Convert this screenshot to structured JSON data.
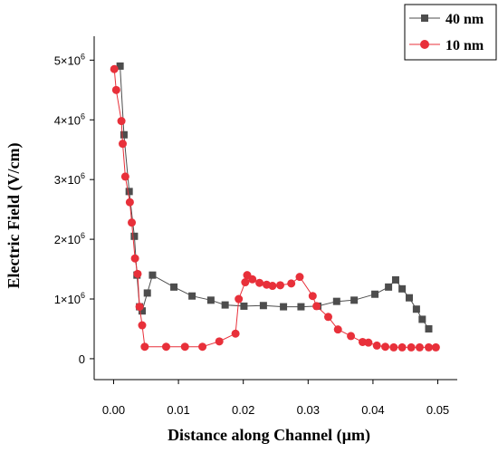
{
  "chart_data": {
    "type": "line",
    "xlabel": "Distance along Channel (µm)",
    "ylabel": "Electric Field (V/cm)",
    "xlim": [
      -0.003,
      0.053
    ],
    "ylim": [
      -350000,
      5400000
    ],
    "x_ticks": [
      {
        "value": 0.0,
        "label": "0.00"
      },
      {
        "value": 0.01,
        "label": "0.01"
      },
      {
        "value": 0.02,
        "label": "0.02"
      },
      {
        "value": 0.03,
        "label": "0.03"
      },
      {
        "value": 0.04,
        "label": "0.04"
      },
      {
        "value": 0.05,
        "label": "0.05"
      }
    ],
    "y_ticks": [
      {
        "value": 0,
        "mantissa": "0",
        "exponent": ""
      },
      {
        "value": 1000000,
        "mantissa": "1×10",
        "exponent": "6"
      },
      {
        "value": 2000000,
        "mantissa": "2×10",
        "exponent": "6"
      },
      {
        "value": 3000000,
        "mantissa": "3×10",
        "exponent": "6"
      },
      {
        "value": 4000000,
        "mantissa": "4×10",
        "exponent": "6"
      },
      {
        "value": 5000000,
        "mantissa": "5×10",
        "exponent": "6"
      }
    ],
    "legend_position": "top-right",
    "series": [
      {
        "name": "40 nm",
        "color": "#4d4d4d",
        "marker": "square",
        "x": [
          0.001,
          0.0016,
          0.0024,
          0.0032,
          0.0036,
          0.004,
          0.0044,
          0.0052,
          0.006,
          0.0093,
          0.0121,
          0.015,
          0.0172,
          0.0201,
          0.0231,
          0.0262,
          0.0289,
          0.0315,
          0.0344,
          0.0371,
          0.0403,
          0.0424,
          0.0435,
          0.0445,
          0.0456,
          0.0467,
          0.0476,
          0.0486
        ],
        "y": [
          4900000,
          3750000,
          2800000,
          2050000,
          1400000,
          870000,
          800000,
          1100000,
          1400000,
          1200000,
          1050000,
          980000,
          900000,
          880000,
          890000,
          870000,
          870000,
          880000,
          960000,
          980000,
          1080000,
          1200000,
          1320000,
          1170000,
          1020000,
          830000,
          660000,
          500000
        ]
      },
      {
        "name": "10 nm",
        "color": "#e8303a",
        "marker": "circle",
        "x": [
          0.0001,
          0.0004,
          0.0012,
          0.0014,
          0.0018,
          0.0025,
          0.0028,
          0.0033,
          0.0037,
          0.004,
          0.0044,
          0.0048,
          0.0081,
          0.011,
          0.0137,
          0.0163,
          0.0188,
          0.0193,
          0.0203,
          0.0206,
          0.0214,
          0.0225,
          0.0236,
          0.0245,
          0.0257,
          0.0274,
          0.0287,
          0.0307,
          0.0313,
          0.0331,
          0.0346,
          0.0366,
          0.0384,
          0.0393,
          0.0406,
          0.0419,
          0.0432,
          0.0445,
          0.0459,
          0.0472,
          0.0486,
          0.0497
        ],
        "y": [
          4850000,
          4500000,
          3980000,
          3600000,
          3050000,
          2620000,
          2280000,
          1680000,
          1420000,
          870000,
          560000,
          200000,
          200000,
          200000,
          200000,
          290000,
          420000,
          1000000,
          1280000,
          1400000,
          1330000,
          1270000,
          1240000,
          1220000,
          1230000,
          1260000,
          1370000,
          1050000,
          880000,
          700000,
          490000,
          380000,
          280000,
          270000,
          220000,
          200000,
          190000,
          190000,
          190000,
          190000,
          190000,
          190000
        ]
      }
    ]
  }
}
